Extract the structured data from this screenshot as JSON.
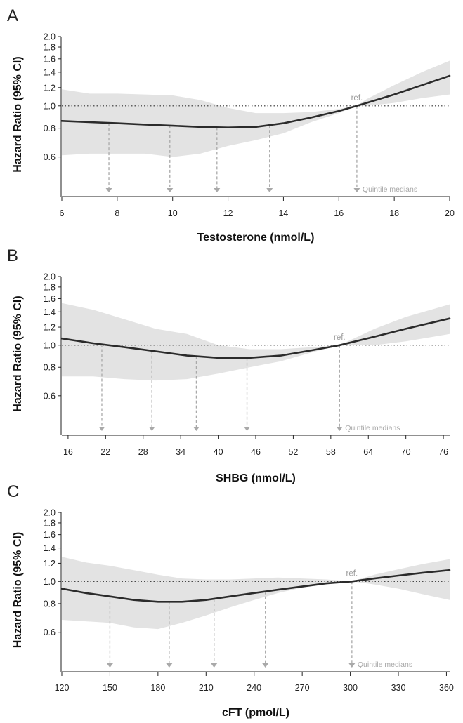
{
  "colors": {
    "curve": "#2b2b2b",
    "ci_band": "#e3e3e3",
    "quintile_marker": "#a9a9a9",
    "reference_line": "#333333",
    "axis": "#222222"
  },
  "chart_data": [
    {
      "type": "line",
      "panel_label": "A",
      "xlabel": "Testosterone (nmol/L)",
      "ylabel": "Hazard Ratio (95% CI)",
      "y_scale": "log",
      "xlim": [
        6,
        20
      ],
      "ylim": [
        0.52,
        2.0
      ],
      "x_ticks": [
        6,
        8,
        10,
        12,
        14,
        16,
        18,
        20
      ],
      "y_ticks": [
        0.6,
        0.8,
        1.0,
        1.2,
        1.4,
        1.6,
        1.8,
        2.0
      ],
      "y_tick_labels": [
        "0.6",
        "0.8",
        "1.0",
        "1.2",
        "1.4",
        "1.6",
        "1.8",
        "2.0"
      ],
      "reference_line_y": 1.0,
      "ref_label": "ref.",
      "quintile_label": "Quintile medians",
      "quintile_medians": [
        7.7,
        9.9,
        11.6,
        13.5,
        16.65
      ],
      "curve": {
        "x": [
          6,
          7,
          8,
          9,
          10,
          11,
          12,
          13,
          14,
          15,
          16,
          16.65,
          17,
          18,
          19,
          20
        ],
        "y": [
          0.86,
          0.85,
          0.84,
          0.83,
          0.82,
          0.81,
          0.805,
          0.81,
          0.84,
          0.89,
          0.95,
          1.0,
          1.03,
          1.12,
          1.23,
          1.35
        ]
      },
      "ci_upper": {
        "x": [
          6,
          7,
          8,
          9,
          10,
          11,
          12,
          13,
          14,
          15,
          16,
          16.65,
          17,
          18,
          19,
          20
        ],
        "y": [
          1.18,
          1.13,
          1.13,
          1.12,
          1.11,
          1.06,
          0.98,
          0.93,
          0.93,
          0.94,
          0.97,
          1.0,
          1.07,
          1.23,
          1.4,
          1.57
        ]
      },
      "ci_lower": {
        "x": [
          6,
          7,
          8,
          9,
          10,
          11,
          12,
          13,
          14,
          15,
          16,
          16.65,
          17,
          18,
          19,
          20
        ],
        "y": [
          0.61,
          0.62,
          0.62,
          0.62,
          0.6,
          0.62,
          0.67,
          0.71,
          0.76,
          0.85,
          0.93,
          1.0,
          1.0,
          1.03,
          1.08,
          1.12
        ]
      }
    },
    {
      "type": "line",
      "panel_label": "B",
      "xlabel": "SHBG (nmol/L)",
      "ylabel": "Hazard Ratio (95% CI)",
      "y_scale": "log",
      "xlim": [
        15,
        77
      ],
      "ylim": [
        0.52,
        2.0
      ],
      "x_ticks": [
        16,
        22,
        28,
        34,
        40,
        46,
        52,
        58,
        64,
        70,
        76
      ],
      "y_ticks": [
        0.6,
        0.8,
        1.0,
        1.2,
        1.4,
        1.6,
        1.8,
        2.0
      ],
      "y_tick_labels": [
        "0.6",
        "0.8",
        "1.0",
        "1.2",
        "1.4",
        "1.6",
        "1.8",
        "2.0"
      ],
      "reference_line_y": 1.0,
      "ref_label": "ref.",
      "quintile_label": "Quintile medians",
      "quintile_medians": [
        21.4,
        29.4,
        36.5,
        44.6,
        59.4
      ],
      "curve": {
        "x": [
          15,
          20,
          25,
          30,
          35,
          40,
          45,
          50,
          55,
          59.4,
          65,
          70,
          77
        ],
        "y": [
          1.07,
          1.02,
          0.98,
          0.94,
          0.9,
          0.88,
          0.88,
          0.9,
          0.95,
          1.0,
          1.09,
          1.18,
          1.31
        ]
      },
      "ci_upper": {
        "x": [
          15,
          20,
          25,
          30,
          35,
          40,
          45,
          50,
          55,
          59.4,
          65,
          70,
          77
        ],
        "y": [
          1.53,
          1.43,
          1.3,
          1.18,
          1.12,
          1.0,
          0.96,
          0.96,
          0.98,
          1.0,
          1.18,
          1.33,
          1.51
        ]
      },
      "ci_lower": {
        "x": [
          15,
          20,
          25,
          30,
          35,
          40,
          45,
          50,
          55,
          59.4,
          65,
          70,
          77
        ],
        "y": [
          0.73,
          0.73,
          0.71,
          0.7,
          0.71,
          0.75,
          0.8,
          0.85,
          0.93,
          1.0,
          1.0,
          1.04,
          1.12
        ]
      }
    },
    {
      "type": "line",
      "panel_label": "C",
      "xlabel": "cFT (pmol/L)",
      "ylabel": "Hazard Ratio (95% CI)",
      "y_scale": "log",
      "xlim": [
        120,
        362
      ],
      "ylim": [
        0.52,
        2.0
      ],
      "x_ticks": [
        120,
        150,
        180,
        210,
        240,
        270,
        300,
        330,
        360
      ],
      "y_ticks": [
        0.6,
        0.8,
        1.0,
        1.2,
        1.4,
        1.6,
        1.8,
        2.0
      ],
      "y_tick_labels": [
        "0.6",
        "0.8",
        "1.0",
        "1.2",
        "1.4",
        "1.6",
        "1.8",
        "2.0"
      ],
      "reference_line_y": 1.0,
      "ref_label": "ref.",
      "quintile_label": "Quintile medians",
      "quintile_medians": [
        150,
        187,
        215,
        247,
        301
      ],
      "curve": {
        "x": [
          120,
          135,
          150,
          165,
          180,
          195,
          210,
          225,
          240,
          255,
          270,
          285,
          301,
          315,
          330,
          345,
          362
        ],
        "y": [
          0.93,
          0.89,
          0.86,
          0.83,
          0.815,
          0.815,
          0.83,
          0.86,
          0.89,
          0.92,
          0.95,
          0.98,
          1.0,
          1.03,
          1.06,
          1.09,
          1.12
        ]
      },
      "ci_upper": {
        "x": [
          120,
          135,
          150,
          165,
          180,
          195,
          210,
          225,
          240,
          255,
          270,
          285,
          301,
          315,
          330,
          345,
          362
        ],
        "y": [
          1.28,
          1.21,
          1.17,
          1.12,
          1.07,
          1.03,
          1.02,
          1.02,
          1.03,
          1.04,
          1.03,
          1.02,
          1.0,
          1.07,
          1.13,
          1.19,
          1.25
        ]
      },
      "ci_lower": {
        "x": [
          120,
          135,
          150,
          165,
          180,
          195,
          210,
          225,
          240,
          255,
          270,
          285,
          301,
          315,
          330,
          345,
          362
        ],
        "y": [
          0.68,
          0.67,
          0.66,
          0.63,
          0.62,
          0.66,
          0.71,
          0.77,
          0.83,
          0.89,
          0.94,
          0.97,
          1.0,
          0.97,
          0.93,
          0.88,
          0.83
        ]
      }
    }
  ]
}
